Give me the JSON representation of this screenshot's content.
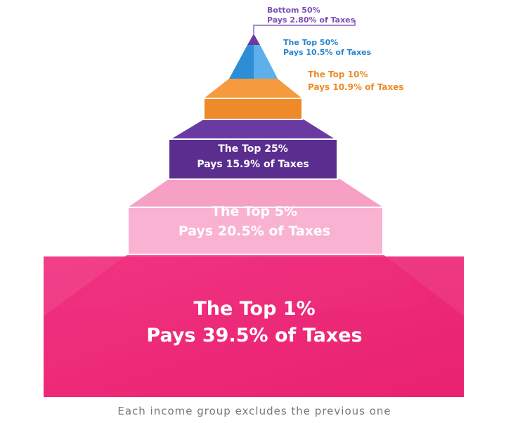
{
  "tiers": [
    {
      "group": "Bottom 50%",
      "share": "Pays 2.80% of Taxes"
    },
    {
      "group": "The Top 50%",
      "share": "Pays 10.5% of Taxes"
    },
    {
      "group": "The Top 10%",
      "share": "Pays 10.9% of Taxes"
    },
    {
      "group": "The Top 25%",
      "share": "Pays 15.9% of Taxes"
    },
    {
      "group": "The Top 5%",
      "share": "Pays 20.5% of Taxes"
    },
    {
      "group": "The Top 1%",
      "share": "Pays 39.5% of Taxes"
    }
  ],
  "footnote": "Each income group excludes the previous one"
}
